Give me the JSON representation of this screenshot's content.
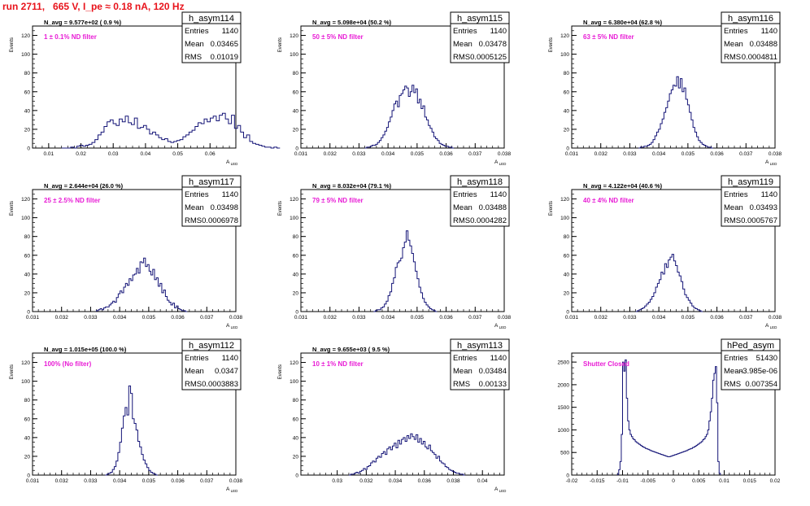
{
  "header": {
    "run_label": "run 2711,   665 V, I_pe ≈ 0.18 nA, 120 Hz"
  },
  "colors": {
    "header": "#e8131b",
    "filter_label": "#e81cd5",
    "histogram": "#141477",
    "axis": "#000000"
  },
  "chart_data": [
    {
      "type": "histogram",
      "name": "h_asym114",
      "ylabel": "Events",
      "xlabel": "A",
      "xlabel_sub": "LED",
      "xlim": [
        0.005,
        0.068
      ],
      "ylim": [
        0,
        130
      ],
      "xticks": [
        "0.01",
        "0.02",
        "0.03",
        "0.04",
        "0.05",
        "0.06"
      ],
      "xtick_values": [
        0.01,
        0.02,
        0.03,
        0.04,
        0.05,
        0.06
      ],
      "yticks": [
        "0",
        "20",
        "40",
        "60",
        "80",
        "100",
        "120"
      ],
      "yticks_v": [
        0,
        20,
        40,
        60,
        80,
        100,
        120
      ],
      "stats": {
        "entries_label": "Entries",
        "entries": "1140",
        "mean_label": "Mean",
        "mean": "0.03465",
        "rms_label": "RMS",
        "rms": "0.01019"
      },
      "navg": "N_avg = 9.577e+02 ( 0.9 %)",
      "filter": "1 ± 0.1% ND filter",
      "bins": {
        "start": 0.014,
        "width": 0.00094,
        "values": [
          0,
          0,
          0,
          1,
          0,
          2,
          3,
          2,
          3,
          4,
          6,
          9,
          14,
          17,
          23,
          28,
          30,
          26,
          24,
          31,
          28,
          34,
          27,
          25,
          32,
          21,
          22,
          24,
          20,
          15,
          17,
          14,
          11,
          9,
          10,
          7,
          6,
          7,
          8,
          9,
          12,
          14,
          17,
          19,
          23,
          27,
          26,
          31,
          28,
          32,
          34,
          29,
          35,
          37,
          31,
          26,
          35,
          21,
          24,
          17,
          11,
          14,
          7,
          5,
          4,
          3,
          2,
          1,
          1,
          0,
          1,
          0
        ]
      }
    },
    {
      "type": "histogram",
      "name": "h_asym115",
      "ylabel": "Events",
      "xlabel": "A",
      "xlabel_sub": "LED",
      "xlim": [
        0.031,
        0.038
      ],
      "ylim": [
        0,
        130
      ],
      "xticks": [
        "0.031",
        "0.032",
        "0.033",
        "0.034",
        "0.035",
        "0.036",
        "0.037",
        "0.038"
      ],
      "xtick_values": [
        0.031,
        0.032,
        0.033,
        0.034,
        0.035,
        0.036,
        0.037,
        0.038
      ],
      "yticks": [
        "0",
        "20",
        "40",
        "60",
        "80",
        "100",
        "120"
      ],
      "yticks_v": [
        0,
        20,
        40,
        60,
        80,
        100,
        120
      ],
      "stats": {
        "entries_label": "Entries",
        "entries": "1140",
        "mean_label": "Mean",
        "mean": "0.03478",
        "rms_label": "RMS",
        "rms": "0.0005125"
      },
      "navg": "N_avg = 5.098e+04 (50.2 %)",
      "filter": "50 ± 5% ND filter",
      "bins": {
        "start": 0.0332,
        "width": 6.25e-05,
        "values": [
          0,
          1,
          1,
          2,
          3,
          3,
          4,
          6,
          8,
          11,
          14,
          18,
          22,
          28,
          33,
          40,
          47,
          50,
          44,
          56,
          58,
          62,
          66,
          64,
          55,
          60,
          67,
          59,
          63,
          48,
          52,
          42,
          45,
          33,
          30,
          24,
          21,
          17,
          12,
          10,
          8,
          5,
          4,
          3,
          2,
          2,
          1,
          1,
          0
        ]
      }
    },
    {
      "type": "histogram",
      "name": "h_asym116",
      "ylabel": "Events",
      "xlabel": "A",
      "xlabel_sub": "LED",
      "xlim": [
        0.031,
        0.038
      ],
      "ylim": [
        0,
        130
      ],
      "xticks": [
        "0.031",
        "0.032",
        "0.033",
        "0.034",
        "0.035",
        "0.036",
        "0.037",
        "0.038"
      ],
      "xtick_values": [
        0.031,
        0.032,
        0.033,
        0.034,
        0.035,
        0.036,
        0.037,
        0.038
      ],
      "yticks": [
        "0",
        "20",
        "40",
        "60",
        "80",
        "100",
        "120"
      ],
      "yticks_v": [
        0,
        20,
        40,
        60,
        80,
        100,
        120
      ],
      "stats": {
        "entries_label": "Entries",
        "entries": "1140",
        "mean_label": "Mean",
        "mean": "0.03488",
        "rms_label": "RMS",
        "rms": "0.0004811"
      },
      "navg": "N_avg = 6.380e+04 (62.8 %)",
      "filter": "63 ± 5% ND filter",
      "bins": {
        "start": 0.0333,
        "width": 6.25e-05,
        "values": [
          0,
          1,
          1,
          2,
          2,
          3,
          4,
          6,
          9,
          13,
          17,
          20,
          26,
          31,
          38,
          43,
          50,
          58,
          62,
          67,
          66,
          76,
          64,
          74,
          60,
          64,
          52,
          46,
          38,
          30,
          22,
          17,
          12,
          8,
          6,
          4,
          3,
          2,
          1,
          1,
          0
        ]
      }
    },
    {
      "type": "histogram",
      "name": "h_asym117",
      "ylabel": "Events",
      "xlabel": "A",
      "xlabel_sub": "LED",
      "xlim": [
        0.031,
        0.038
      ],
      "ylim": [
        0,
        130
      ],
      "xticks": [
        "0.031",
        "0.032",
        "0.033",
        "0.034",
        "0.035",
        "0.036",
        "0.037",
        "0.038"
      ],
      "xtick_values": [
        0.031,
        0.032,
        0.033,
        0.034,
        0.035,
        0.036,
        0.037,
        0.038
      ],
      "yticks": [
        "0",
        "20",
        "40",
        "60",
        "80",
        "100",
        "120"
      ],
      "yticks_v": [
        0,
        20,
        40,
        60,
        80,
        100,
        120
      ],
      "stats": {
        "entries_label": "Entries",
        "entries": "1140",
        "mean_label": "Mean",
        "mean": "0.03498",
        "rms_label": "RMS",
        "rms": "0.0006978"
      },
      "navg": "N_avg = 2.644e+04 (26.0 %)",
      "filter": "25 ± 2.5% ND filter",
      "bins": {
        "start": 0.0332,
        "width": 6.25e-05,
        "values": [
          1,
          2,
          3,
          2,
          4,
          5,
          5,
          7,
          9,
          11,
          10,
          15,
          19,
          22,
          20,
          26,
          30,
          28,
          35,
          33,
          39,
          40,
          46,
          41,
          53,
          52,
          57,
          48,
          50,
          43,
          39,
          45,
          34,
          36,
          27,
          30,
          20,
          23,
          16,
          12,
          10,
          7,
          9,
          4,
          6,
          3,
          2,
          1,
          1,
          0
        ]
      }
    },
    {
      "type": "histogram",
      "name": "h_asym118",
      "ylabel": "Events",
      "xlabel": "A",
      "xlabel_sub": "LED",
      "xlim": [
        0.031,
        0.038
      ],
      "ylim": [
        0,
        130
      ],
      "xticks": [
        "0.031",
        "0.032",
        "0.033",
        "0.034",
        "0.035",
        "0.036",
        "0.037",
        "0.038"
      ],
      "xtick_values": [
        0.031,
        0.032,
        0.033,
        0.034,
        0.035,
        0.036,
        0.037,
        0.038
      ],
      "yticks": [
        "0",
        "20",
        "40",
        "60",
        "80",
        "100",
        "120"
      ],
      "yticks_v": [
        0,
        20,
        40,
        60,
        80,
        100,
        120
      ],
      "stats": {
        "entries_label": "Entries",
        "entries": "1140",
        "mean_label": "Mean",
        "mean": "0.03488",
        "rms_label": "RMS",
        "rms": "0.0004282"
      },
      "navg": "N_avg = 8.032e+04 (79.1 %)",
      "filter": "79 ± 5% ND filter",
      "bins": {
        "start": 0.0335,
        "width": 6.25e-05,
        "values": [
          0,
          1,
          2,
          2,
          4,
          5,
          8,
          11,
          17,
          21,
          30,
          36,
          47,
          52,
          54,
          57,
          68,
          74,
          86,
          76,
          70,
          62,
          53,
          43,
          35,
          26,
          20,
          14,
          10,
          7,
          5,
          3,
          2,
          1,
          0
        ]
      }
    },
    {
      "type": "histogram",
      "name": "h_asym119",
      "ylabel": "Events",
      "xlabel": "A",
      "xlabel_sub": "LED",
      "xlim": [
        0.031,
        0.038
      ],
      "ylim": [
        0,
        130
      ],
      "xticks": [
        "0.031",
        "0.032",
        "0.033",
        "0.034",
        "0.035",
        "0.036",
        "0.037",
        "0.038"
      ],
      "xtick_values": [
        0.031,
        0.032,
        0.033,
        0.034,
        0.035,
        0.036,
        0.037,
        0.038
      ],
      "yticks": [
        "0",
        "20",
        "40",
        "60",
        "80",
        "100",
        "120"
      ],
      "yticks_v": [
        0,
        20,
        40,
        60,
        80,
        100,
        120
      ],
      "stats": {
        "entries_label": "Entries",
        "entries": "1140",
        "mean_label": "Mean",
        "mean": "0.03493",
        "rms_label": "RMS",
        "rms": "0.0005767"
      },
      "navg": "N_avg = 4.122e+04 (40.6 %)",
      "filter": "40 ± 4% ND filter",
      "bins": {
        "start": 0.0332,
        "width": 6.25e-05,
        "values": [
          0,
          1,
          2,
          3,
          4,
          6,
          8,
          10,
          13,
          16,
          20,
          26,
          30,
          34,
          42,
          40,
          51,
          47,
          55,
          58,
          61,
          54,
          49,
          42,
          38,
          32,
          24,
          18,
          15,
          12,
          9,
          6,
          4,
          3,
          2,
          1,
          0
        ]
      }
    },
    {
      "type": "histogram",
      "name": "h_asym112",
      "ylabel": "Events",
      "xlabel": "A",
      "xlabel_sub": "LED",
      "xlim": [
        0.031,
        0.038
      ],
      "ylim": [
        0,
        130
      ],
      "xticks": [
        "0.031",
        "0.032",
        "0.033",
        "0.034",
        "0.035",
        "0.036",
        "0.037",
        "0.038"
      ],
      "xtick_values": [
        0.031,
        0.032,
        0.033,
        0.034,
        0.035,
        0.036,
        0.037,
        0.038
      ],
      "yticks": [
        "0",
        "20",
        "40",
        "60",
        "80",
        "100",
        "120"
      ],
      "yticks_v": [
        0,
        20,
        40,
        60,
        80,
        100,
        120
      ],
      "stats": {
        "entries_label": "Entries",
        "entries": "1140",
        "mean_label": "Mean",
        "mean": "0.0347",
        "rms_label": "RMS",
        "rms": "0.0003883"
      },
      "navg": "N_avg = 1.015e+05 (100.0 %)",
      "filter": "100% (No filter)",
      "bins": {
        "start": 0.0335,
        "width": 6.25e-05,
        "values": [
          0,
          1,
          2,
          3,
          6,
          9,
          15,
          24,
          35,
          50,
          63,
          72,
          64,
          95,
          87,
          60,
          55,
          48,
          36,
          30,
          22,
          16,
          12,
          8,
          5,
          3,
          2,
          1,
          0
        ]
      }
    },
    {
      "type": "histogram",
      "name": "h_asym113",
      "ylabel": "Events",
      "xlabel": "A",
      "xlabel_sub": "LED",
      "xlim": [
        0.0275,
        0.0415
      ],
      "ylim": [
        0,
        130
      ],
      "xticks": [
        "0.03",
        "0.032",
        "0.034",
        "0.036",
        "0.038",
        "0.04"
      ],
      "xtick_values": [
        0.03,
        0.032,
        0.034,
        0.036,
        0.038,
        0.04
      ],
      "yticks": [
        "0",
        "20",
        "40",
        "60",
        "80",
        "100",
        "120"
      ],
      "yticks_v": [
        0,
        20,
        40,
        60,
        80,
        100,
        120
      ],
      "stats": {
        "entries_label": "Entries",
        "entries": "1140",
        "mean_label": "Mean",
        "mean": "0.03484",
        "rms_label": "RMS",
        "rms": "0.00133"
      },
      "navg": "N_avg = 9.655e+03 ( 9.5 %)",
      "filter": "10 ± 1% ND filter",
      "bins": {
        "start": 0.0308,
        "width": 0.000125,
        "values": [
          0,
          1,
          1,
          2,
          3,
          2,
          4,
          5,
          7,
          6,
          9,
          10,
          13,
          15,
          14,
          18,
          20,
          19,
          23,
          25,
          22,
          28,
          30,
          27,
          31,
          34,
          29,
          37,
          33,
          38,
          40,
          36,
          42,
          39,
          44,
          41,
          38,
          43,
          35,
          39,
          33,
          36,
          30,
          28,
          32,
          26,
          24,
          22,
          18,
          20,
          15,
          13,
          12,
          9,
          8,
          6,
          5,
          4,
          3,
          2,
          2,
          1,
          1,
          0
        ]
      }
    },
    {
      "type": "histogram",
      "name": "hPed_asym",
      "ylabel": "",
      "xlabel": "",
      "xlabel_sub": "",
      "xlim": [
        -0.02,
        0.02
      ],
      "ylim": [
        0,
        2700
      ],
      "xticks": [
        "-0.02",
        "-0.015",
        "-0.01",
        "-0.005",
        "0",
        "0.005",
        "0.01",
        "0.015",
        "0.02"
      ],
      "xtick_values": [
        -0.02,
        -0.015,
        -0.01,
        -0.005,
        0,
        0.005,
        0.01,
        0.015,
        0.02
      ],
      "yticks": [
        "0",
        "500",
        "1000",
        "1500",
        "2000",
        "2500"
      ],
      "yticks_v": [
        0,
        500,
        1000,
        1500,
        2000,
        2500
      ],
      "stats": {
        "entries_label": "Entries",
        "entries": "51430",
        "mean_label": "Mean",
        "mean": "-3.985e-06",
        "rms_label": "RMS",
        "rms": "0.007354"
      },
      "navg": "",
      "filter": "Shutter Closed",
      "bins": {
        "start": -0.011,
        "width": 0.00025,
        "values": [
          20,
          120,
          300,
          900,
          2500,
          2300,
          2550,
          1700,
          1200,
          1000,
          900,
          850,
          800,
          780,
          740,
          720,
          700,
          680,
          660,
          640,
          620,
          610,
          590,
          580,
          570,
          555,
          540,
          530,
          520,
          510,
          500,
          490,
          480,
          470,
          460,
          450,
          440,
          430,
          420,
          410,
          405,
          410,
          420,
          430,
          440,
          450,
          460,
          470,
          480,
          490,
          500,
          510,
          520,
          530,
          540,
          555,
          570,
          580,
          590,
          610,
          620,
          640,
          660,
          680,
          700,
          720,
          740,
          780,
          800,
          850,
          900,
          1000,
          1200,
          1400,
          1700,
          2100,
          2250,
          2400,
          1600,
          300,
          40
        ]
      }
    }
  ]
}
